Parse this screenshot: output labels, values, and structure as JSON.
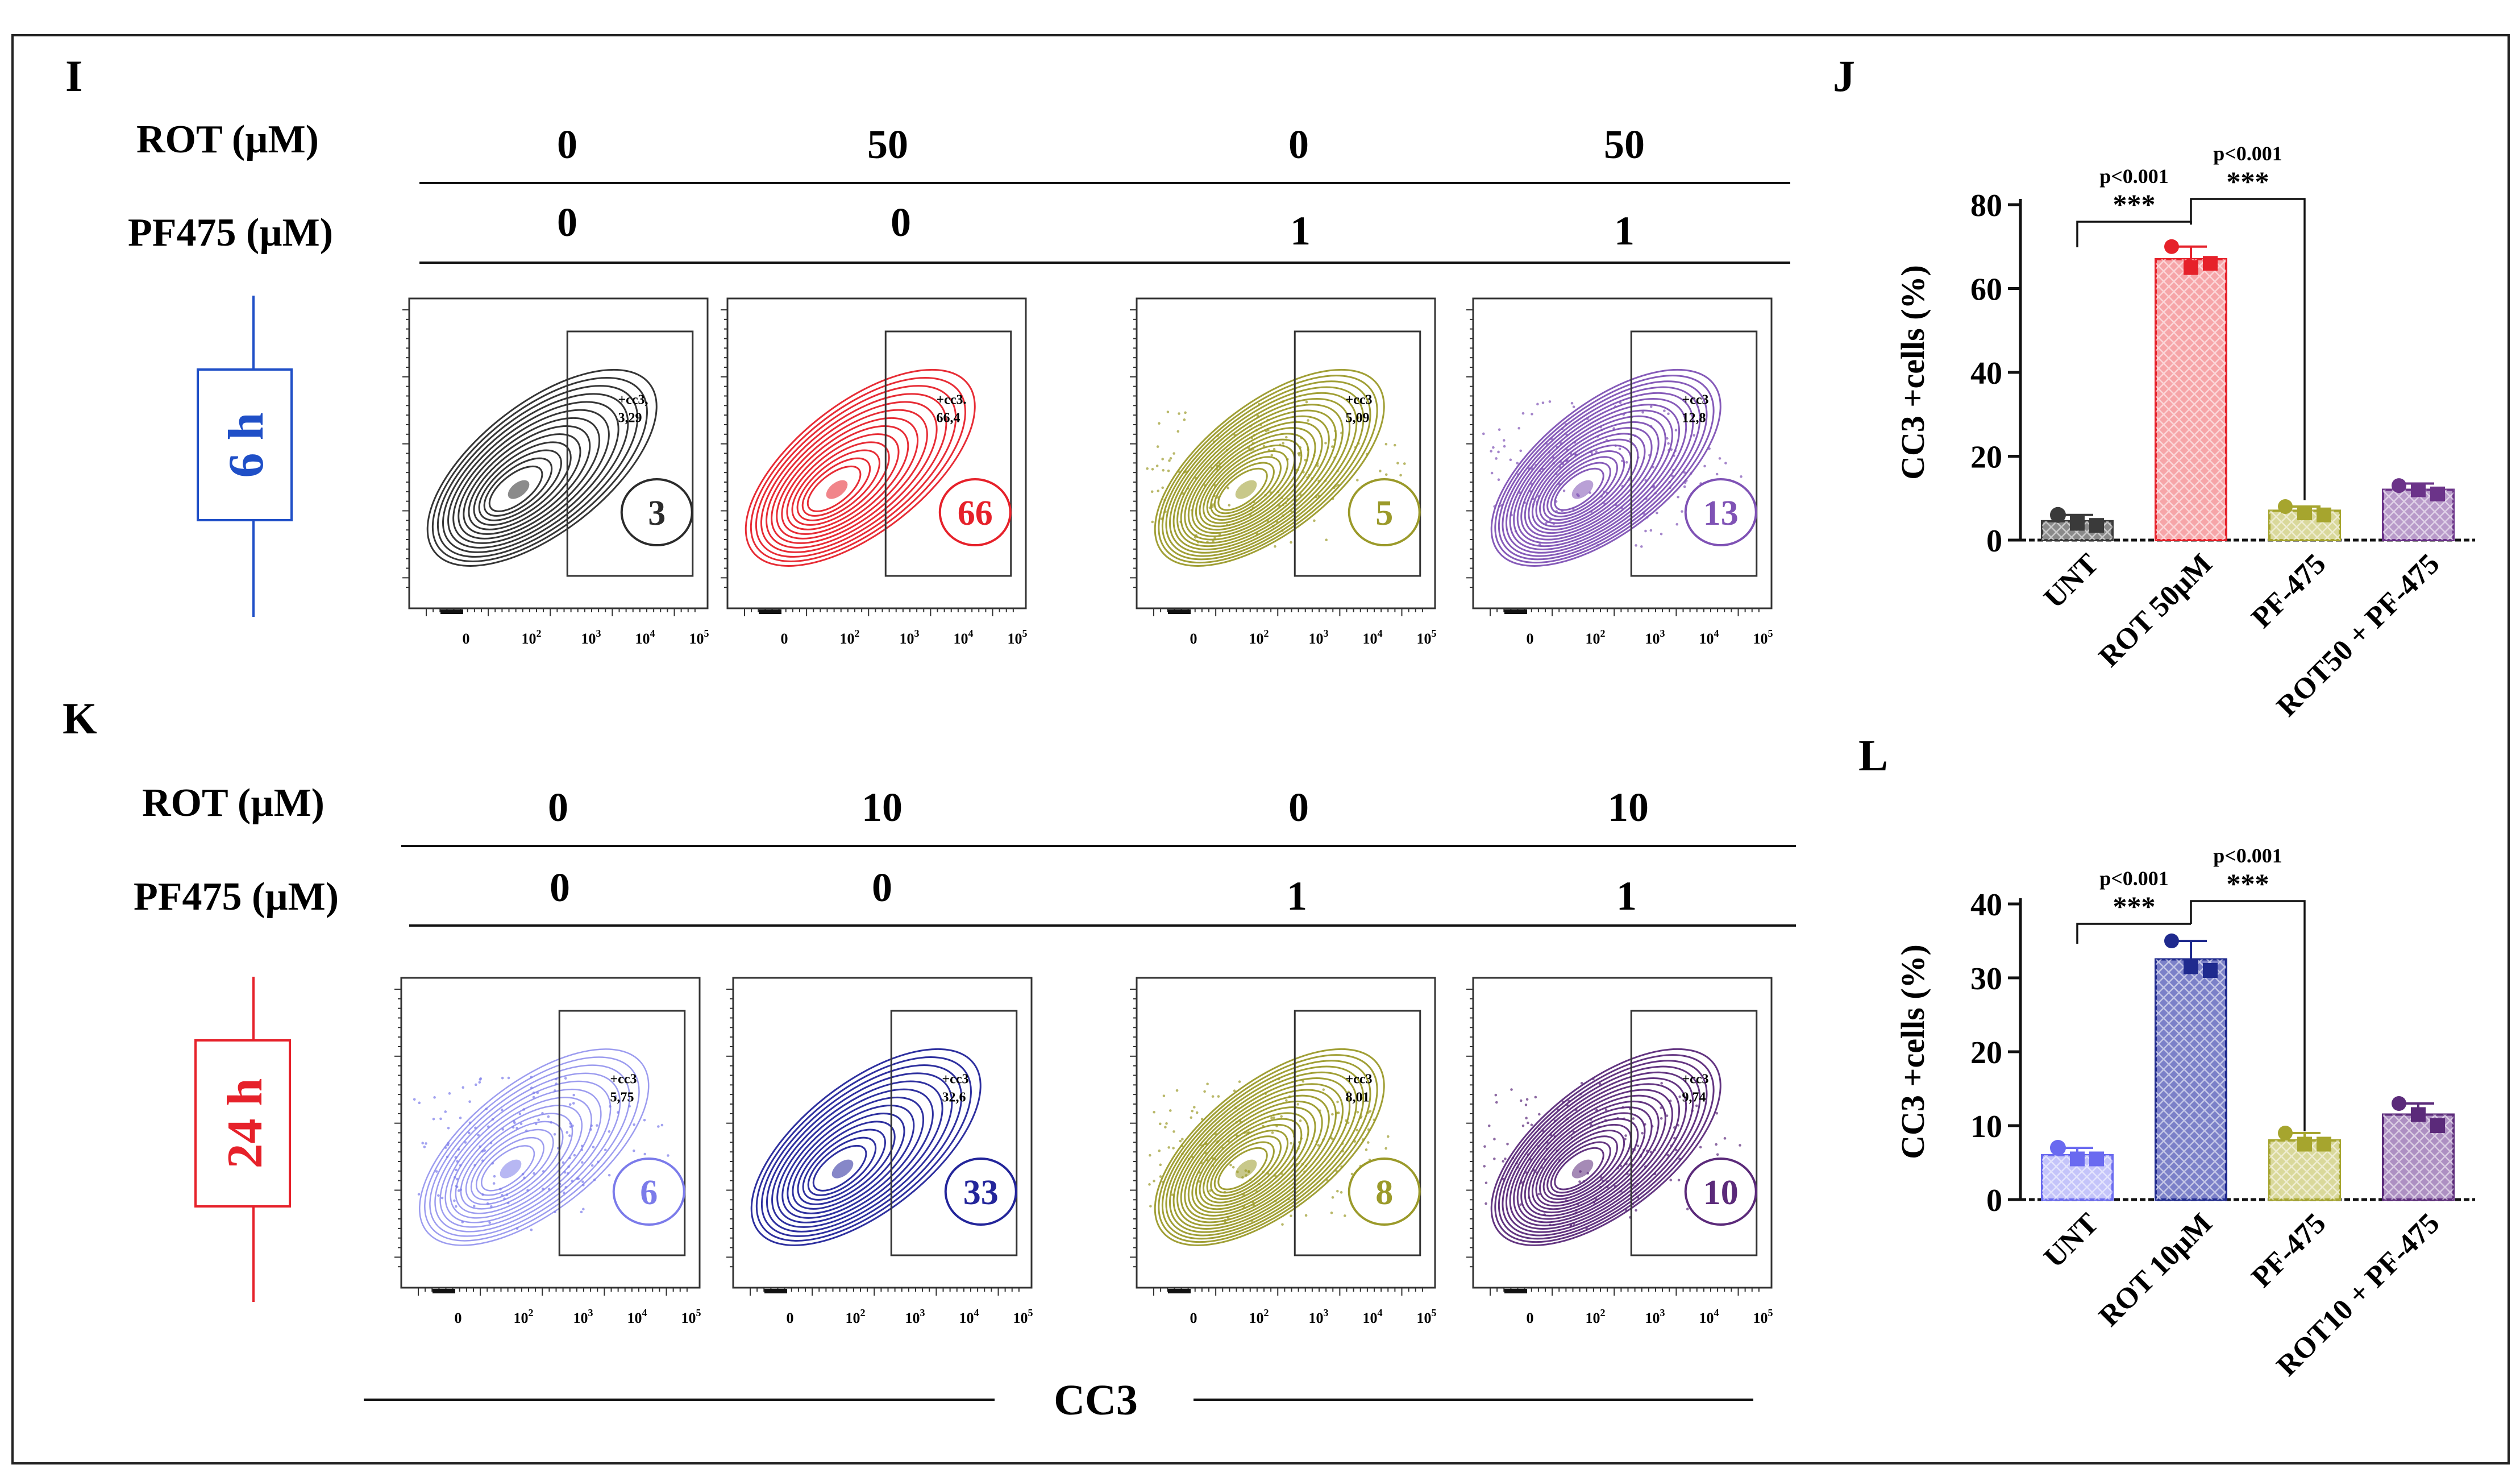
{
  "panels": {
    "I": {
      "letter": "I",
      "row1_label": "ROT  (µM)",
      "row2_label": "PF475 (µM)",
      "rot_values": [
        "0",
        "50",
        "0",
        "50"
      ],
      "pf_values": [
        "0",
        "0",
        "1",
        "1"
      ],
      "time_label": "6 h",
      "time_color": "#1f4fc7",
      "plots": [
        {
          "color": "#2b2b2b",
          "gate_label": "+cc3,",
          "gate_value": "3,29",
          "circle_value": "3",
          "style": "contour"
        },
        {
          "color": "#e6212a",
          "gate_label": "+cc3.",
          "gate_value": "66,4",
          "circle_value": "66",
          "style": "contour"
        },
        {
          "color": "#9b9a2a",
          "gate_label": "+cc3",
          "gate_value": "5,09",
          "circle_value": "5",
          "style": "dense"
        },
        {
          "color": "#7f52b5",
          "gate_label": "+cc3",
          "gate_value": "12,8",
          "circle_value": "13",
          "style": "dense"
        }
      ]
    },
    "K": {
      "letter": "K",
      "row1_label": "ROT  (µM)",
      "row2_label": "PF475 (µM)",
      "rot_values": [
        "0",
        "10",
        "0",
        "10"
      ],
      "pf_values": [
        "0",
        "0",
        "1",
        "1"
      ],
      "time_label": "24 h",
      "time_color": "#e6212a",
      "plots": [
        {
          "color": "#7b7bea",
          "gate_label": "+cc3",
          "gate_value": "5,75",
          "circle_value": "6",
          "style": "light"
        },
        {
          "color": "#23259a",
          "gate_label": "+cc3",
          "gate_value": "32,6",
          "circle_value": "33",
          "style": "contour"
        },
        {
          "color": "#9b9a2a",
          "gate_label": "+cc3",
          "gate_value": "8,01",
          "circle_value": "8",
          "style": "dense"
        },
        {
          "color": "#5b2a7a",
          "gate_label": "+cc3",
          "gate_value": "9,74",
          "circle_value": "10",
          "style": "dense"
        }
      ]
    }
  },
  "xaxis_ticks": [
    "0",
    "10",
    "10",
    "10",
    "10"
  ],
  "xaxis_exponents": [
    "",
    "2",
    "3",
    "4",
    "5"
  ],
  "cc3_axis_label": "CC3",
  "chart_data": [
    {
      "letter": "J",
      "type": "bar",
      "title": "",
      "ylabel": "CC3 +cells (%)",
      "xlabel": "",
      "ylim": [
        0,
        80
      ],
      "yticks": [
        0,
        20,
        40,
        60,
        80
      ],
      "categories": [
        "UNT",
        "ROT 50µM",
        "PF-475",
        "ROT50 + PF-475"
      ],
      "values": [
        4.5,
        67,
        7,
        12
      ],
      "errors": [
        1.5,
        3,
        1,
        1.5
      ],
      "points": [
        [
          6,
          4,
          3.5
        ],
        [
          70,
          65,
          66
        ],
        [
          8,
          6.5,
          6
        ],
        [
          13,
          12,
          11
        ]
      ],
      "colors": [
        "#3a3a3a",
        "#e6212a",
        "#a6a52e",
        "#6b3389"
      ],
      "fills": [
        "#8a8a8a",
        "#f6a5a8",
        "#d9d89a",
        "#b89ac9"
      ],
      "comparisons": [
        {
          "from": 0,
          "to": 1,
          "label": "p<0.001",
          "stars": "***"
        },
        {
          "from": 1,
          "to": 2,
          "label": "p<0.001",
          "stars": "***"
        }
      ]
    },
    {
      "letter": "L",
      "type": "bar",
      "title": "",
      "ylabel": "CC3 +cells (%)",
      "xlabel": "",
      "ylim": [
        0,
        40
      ],
      "yticks": [
        0,
        10,
        20,
        30,
        40
      ],
      "categories": [
        "UNT",
        "ROT 10µM",
        "PF-475",
        "ROT10 + PF-475"
      ],
      "values": [
        6,
        32.5,
        8,
        11.5
      ],
      "errors": [
        1,
        2.5,
        1,
        1.5
      ],
      "points": [
        [
          7,
          5.5,
          5.5
        ],
        [
          35,
          31.5,
          31
        ],
        [
          9,
          7.5,
          7.5
        ],
        [
          13,
          11.5,
          10
        ]
      ],
      "colors": [
        "#6a6af0",
        "#1f2a8e",
        "#a6a52e",
        "#5b2a7a"
      ],
      "fills": [
        "#c4c4fa",
        "#7b80c8",
        "#d9d89a",
        "#ad8fc2"
      ],
      "comparisons": [
        {
          "from": 0,
          "to": 1,
          "label": "p<0.001",
          "stars": "***"
        },
        {
          "from": 1,
          "to": 2,
          "label": "p<0.001",
          "stars": "***"
        }
      ]
    }
  ]
}
